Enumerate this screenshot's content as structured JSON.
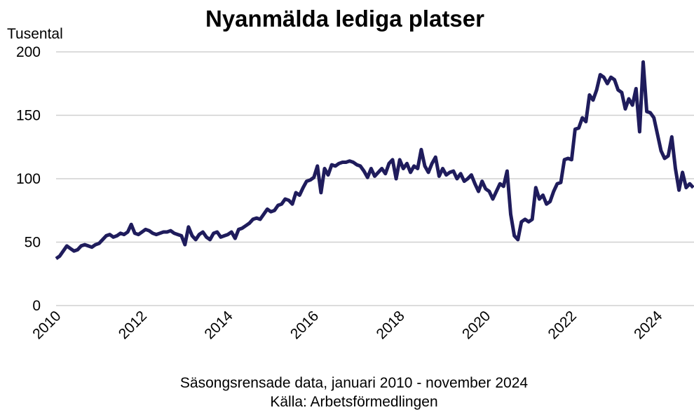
{
  "chart_data": {
    "type": "line",
    "title": "Nyanmälda lediga platser",
    "y_label": "Tusental",
    "notes": [
      "Säsongsrensade data, januari 2010 - november 2024",
      "Källa: Arbetsförmedlingen"
    ],
    "xlim": [
      2010,
      2024.85
    ],
    "xticks": [
      2010,
      2012,
      2014,
      2016,
      2018,
      2020,
      2022,
      2024
    ],
    "ylim": [
      0,
      200
    ],
    "yticks": [
      0,
      50,
      100,
      150,
      200
    ],
    "grid": true,
    "x": [
      2010,
      2010.083,
      2010.167,
      2010.25,
      2010.333,
      2010.417,
      2010.5,
      2010.583,
      2010.667,
      2010.75,
      2010.833,
      2010.917,
      2011,
      2011.083,
      2011.167,
      2011.25,
      2011.333,
      2011.417,
      2011.5,
      2011.583,
      2011.667,
      2011.75,
      2011.833,
      2011.917,
      2012,
      2012.083,
      2012.167,
      2012.25,
      2012.333,
      2012.417,
      2012.5,
      2012.583,
      2012.667,
      2012.75,
      2012.833,
      2012.917,
      2013,
      2013.083,
      2013.167,
      2013.25,
      2013.333,
      2013.417,
      2013.5,
      2013.583,
      2013.667,
      2013.75,
      2013.833,
      2013.917,
      2014,
      2014.083,
      2014.167,
      2014.25,
      2014.333,
      2014.417,
      2014.5,
      2014.583,
      2014.667,
      2014.75,
      2014.833,
      2014.917,
      2015,
      2015.083,
      2015.167,
      2015.25,
      2015.333,
      2015.417,
      2015.5,
      2015.583,
      2015.667,
      2015.75,
      2015.833,
      2015.917,
      2016,
      2016.083,
      2016.167,
      2016.25,
      2016.333,
      2016.417,
      2016.5,
      2016.583,
      2016.667,
      2016.75,
      2016.833,
      2016.917,
      2017,
      2017.083,
      2017.167,
      2017.25,
      2017.333,
      2017.417,
      2017.5,
      2017.583,
      2017.667,
      2017.75,
      2017.833,
      2017.917,
      2018,
      2018.083,
      2018.167,
      2018.25,
      2018.333,
      2018.417,
      2018.5,
      2018.583,
      2018.667,
      2018.75,
      2018.833,
      2018.917,
      2019,
      2019.083,
      2019.167,
      2019.25,
      2019.333,
      2019.417,
      2019.5,
      2019.583,
      2019.667,
      2019.75,
      2019.833,
      2019.917,
      2020,
      2020.083,
      2020.167,
      2020.25,
      2020.333,
      2020.417,
      2020.5,
      2020.583,
      2020.667,
      2020.75,
      2020.833,
      2020.917,
      2021,
      2021.083,
      2021.167,
      2021.25,
      2021.333,
      2021.417,
      2021.5,
      2021.583,
      2021.667,
      2021.75,
      2021.833,
      2021.917,
      2022,
      2022.083,
      2022.167,
      2022.25,
      2022.333,
      2022.417,
      2022.5,
      2022.583,
      2022.667,
      2022.75,
      2022.833,
      2022.917,
      2023,
      2023.083,
      2023.167,
      2023.25,
      2023.333,
      2023.417,
      2023.5,
      2023.583,
      2023.667,
      2023.75,
      2023.833,
      2023.917,
      2024,
      2024.083,
      2024.167,
      2024.25,
      2024.333,
      2024.417,
      2024.5,
      2024.583,
      2024.667,
      2024.75,
      2024.833
    ],
    "series": [
      {
        "name": "Nyanmälda lediga platser",
        "color": "#1f1c5c",
        "values": [
          37,
          39,
          43,
          47,
          45,
          43,
          44,
          47,
          48,
          47,
          46,
          48,
          49,
          52,
          55,
          56,
          54,
          55,
          57,
          56,
          58,
          64,
          57,
          56,
          58,
          60,
          59,
          57,
          56,
          57,
          58,
          58,
          59,
          57,
          56,
          55,
          48,
          62,
          55,
          52,
          56,
          58,
          54,
          52,
          57,
          58,
          54,
          55,
          56,
          58,
          53,
          60,
          61,
          63,
          65,
          68,
          69,
          68,
          72,
          76,
          74,
          75,
          79,
          80,
          84,
          83,
          80,
          89,
          87,
          93,
          98,
          99,
          101,
          110,
          89,
          108,
          103,
          111,
          110,
          112,
          113,
          113,
          114,
          113,
          111,
          110,
          106,
          101,
          108,
          102,
          105,
          108,
          104,
          112,
          115,
          100,
          115,
          108,
          112,
          105,
          110,
          108,
          123,
          110,
          105,
          112,
          117,
          102,
          108,
          103,
          105,
          106,
          100,
          104,
          98,
          100,
          103,
          96,
          90,
          98,
          92,
          90,
          84,
          90,
          96,
          94,
          106,
          72,
          55,
          52,
          66,
          68,
          66,
          68,
          93,
          84,
          87,
          80,
          82,
          90,
          96,
          97,
          115,
          116,
          115,
          139,
          140,
          148,
          145,
          166,
          162,
          170,
          182,
          180,
          175,
          180,
          178,
          170,
          168,
          155,
          163,
          158,
          171,
          137,
          192,
          153,
          152,
          148,
          135,
          122,
          116,
          118,
          133,
          108,
          91,
          105,
          93,
          96,
          93
        ]
      }
    ]
  }
}
